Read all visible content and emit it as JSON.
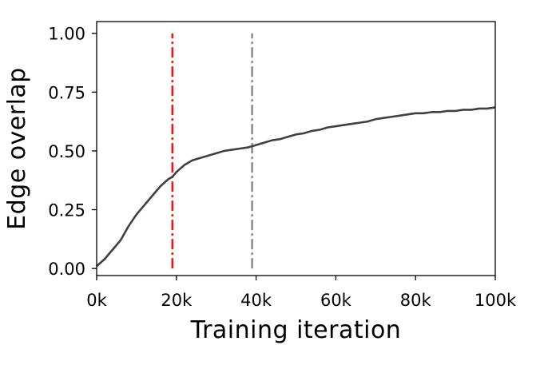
{
  "chart_data": {
    "type": "line",
    "title": "",
    "xlabel": "Training iteration",
    "ylabel": "Edge overlap",
    "xlim": [
      0,
      100000
    ],
    "ylim": [
      -0.03,
      1.05
    ],
    "x_ticks": [
      0,
      20000,
      40000,
      60000,
      80000,
      100000
    ],
    "x_tick_labels": [
      "0k",
      "20k",
      "40k",
      "60k",
      "80k",
      "100k"
    ],
    "y_ticks": [
      0,
      0.25,
      0.5,
      0.75,
      1.0
    ],
    "y_tick_labels": [
      "0.00",
      "0.25",
      "0.50",
      "0.75",
      "1.00"
    ],
    "grid": false,
    "series": [
      {
        "color": "#404040",
        "x": [
          0,
          2000,
          4000,
          6000,
          8000,
          10000,
          12000,
          14000,
          16000,
          18000,
          19000,
          20000,
          22000,
          24000,
          26000,
          28000,
          30000,
          32000,
          34000,
          36000,
          38000,
          40000,
          42000,
          44000,
          46000,
          48000,
          50000,
          52000,
          54000,
          56000,
          58000,
          60000,
          62000,
          64000,
          66000,
          68000,
          70000,
          72000,
          74000,
          76000,
          78000,
          80000,
          82000,
          84000,
          86000,
          88000,
          90000,
          92000,
          94000,
          96000,
          98000,
          100000
        ],
        "y": [
          0.01,
          0.04,
          0.08,
          0.12,
          0.18,
          0.23,
          0.27,
          0.31,
          0.35,
          0.38,
          0.39,
          0.41,
          0.44,
          0.46,
          0.47,
          0.48,
          0.49,
          0.5,
          0.505,
          0.51,
          0.515,
          0.525,
          0.535,
          0.545,
          0.55,
          0.56,
          0.57,
          0.575,
          0.585,
          0.59,
          0.6,
          0.605,
          0.61,
          0.615,
          0.62,
          0.625,
          0.635,
          0.64,
          0.645,
          0.65,
          0.655,
          0.66,
          0.66,
          0.665,
          0.665,
          0.67,
          0.67,
          0.675,
          0.675,
          0.68,
          0.68,
          0.685
        ]
      }
    ],
    "vlines": [
      {
        "x": 19000,
        "y_from": 0,
        "y_to": 1.0,
        "color": "#e41a1c",
        "style": "dash-dot"
      },
      {
        "x": 39000,
        "y_from": 0,
        "y_to": 1.0,
        "color": "#909090",
        "style": "dash-dot"
      }
    ]
  }
}
